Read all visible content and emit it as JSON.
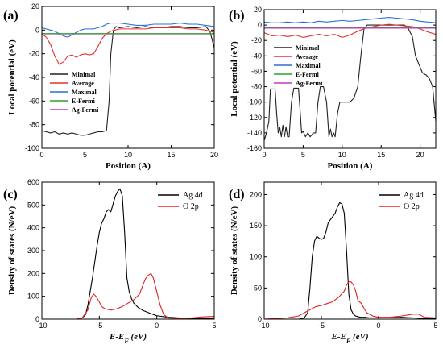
{
  "chart_data": [
    {
      "panel": "(a)",
      "type": "line",
      "xlabel": "Position (A)",
      "ylabel": "Local potential (eV)",
      "xlim": [
        0,
        20
      ],
      "ylim": [
        -100,
        20
      ],
      "xticks": [
        0,
        5,
        10,
        15,
        20
      ],
      "yticks": [
        -100,
        -80,
        -60,
        -40,
        -20,
        0,
        20
      ],
      "legend_position": "center-left",
      "series": [
        {
          "name": "Minimal",
          "color": "#222222",
          "x": [
            0,
            0.5,
            1,
            1.5,
            2,
            2.5,
            3,
            3.5,
            4,
            4.5,
            5,
            5.5,
            6,
            6.5,
            7,
            7.5,
            7.8,
            8.0,
            8.3,
            8.6,
            9,
            10,
            11,
            12,
            13,
            14,
            15,
            16,
            17,
            18,
            19,
            19.5,
            20
          ],
          "y": [
            -85,
            -86,
            -87,
            -86,
            -88,
            -87,
            -88,
            -87,
            -88,
            -89,
            -89,
            -88,
            -87,
            -86,
            -86,
            -85,
            -60,
            -20,
            0,
            3,
            2,
            3,
            2,
            3,
            2,
            2,
            3,
            3,
            2,
            2,
            3,
            -1,
            -15
          ]
        },
        {
          "name": "Average",
          "color": "#e8302a",
          "x": [
            0,
            0.5,
            1,
            1.5,
            2,
            2.5,
            3,
            3.5,
            4,
            4.5,
            5,
            5.5,
            6,
            6.5,
            7,
            7.5,
            8,
            8.5,
            9,
            10,
            11,
            12,
            13,
            14,
            15,
            16,
            17,
            18,
            19,
            20
          ],
          "y": [
            -3,
            -6,
            -12,
            -22,
            -29,
            -27,
            -22,
            -21,
            -23,
            -21,
            -20,
            -21,
            -20,
            -14,
            -7,
            -3,
            -1,
            0,
            1,
            1,
            1,
            1,
            2,
            2,
            2,
            2,
            1,
            1,
            0,
            -2
          ]
        },
        {
          "name": "Maximal",
          "color": "#2b6fd6",
          "x": [
            0,
            0.5,
            1,
            1.5,
            2,
            2.5,
            3,
            3.5,
            4,
            4.5,
            5,
            5.5,
            6,
            6.5,
            7,
            7.5,
            8,
            9,
            10,
            11,
            12,
            13,
            14,
            15,
            16,
            17,
            18,
            19,
            20
          ],
          "y": [
            2,
            1,
            0,
            -1,
            -3,
            -5,
            -6,
            -4,
            -2,
            0,
            1,
            1,
            1,
            2,
            3,
            5,
            6,
            6,
            5,
            4,
            4,
            5,
            5,
            5,
            6,
            5,
            5,
            4,
            3
          ]
        },
        {
          "name": "E-Fermi",
          "color": "#2ca02c",
          "x": [
            0,
            20
          ],
          "y": [
            -3,
            -3
          ]
        },
        {
          "name": "Ag-Fermi",
          "color": "#c03ac0",
          "x": [
            0,
            20
          ],
          "y": [
            -4,
            -4
          ]
        }
      ]
    },
    {
      "panel": "(b)",
      "type": "line",
      "xlabel": "Position (A)",
      "ylabel": "Local potential (eV)",
      "xlim": [
        0,
        22
      ],
      "ylim": [
        -160,
        20
      ],
      "xticks": [
        0,
        5,
        10,
        15,
        20
      ],
      "yticks": [
        -160,
        -140,
        -120,
        -100,
        -80,
        -60,
        -40,
        -20,
        0,
        20
      ],
      "legend_position": "center-left",
      "series": [
        {
          "name": "Minimal",
          "color": "#222222",
          "x": [
            0,
            0.3,
            0.6,
            0.8,
            1.4,
            1.6,
            1.8,
            2.0,
            2.2,
            2.4,
            2.6,
            2.8,
            3.0,
            3.2,
            3.5,
            3.8,
            4.4,
            4.6,
            4.8,
            5.0,
            5.3,
            5.6,
            5.9,
            6.3,
            6.6,
            6.9,
            7.2,
            7.6,
            8.0,
            8.3,
            8.5,
            8.7,
            8.9,
            9.1,
            9.4,
            9.7,
            10.0,
            10.3,
            10.6,
            11.0,
            11.5,
            12.0,
            12.4,
            12.8,
            13.2,
            14,
            15,
            16,
            17,
            18,
            18.5,
            19,
            19.4,
            19.8,
            20.3,
            20.8,
            21.2,
            21.6,
            22
          ],
          "y": [
            -150,
            -140,
            -125,
            -83,
            -83,
            -115,
            -140,
            -133,
            -145,
            -130,
            -145,
            -132,
            -145,
            -145,
            -100,
            -82,
            -82,
            -110,
            -140,
            -138,
            -145,
            -140,
            -145,
            -140,
            -140,
            -100,
            -80,
            -80,
            -100,
            -145,
            -135,
            -145,
            -140,
            -145,
            -115,
            -100,
            -100,
            -100,
            -100,
            -100,
            -95,
            -80,
            -40,
            -5,
            0,
            0,
            0,
            0,
            0,
            0,
            -5,
            -15,
            -40,
            -50,
            -62,
            -65,
            -70,
            -80,
            -125
          ]
        },
        {
          "name": "Average",
          "color": "#e8302a",
          "x": [
            0,
            1,
            2,
            3,
            4,
            5,
            6,
            7,
            8,
            9,
            10,
            11,
            12,
            13,
            14,
            15,
            16,
            17,
            18,
            19,
            20,
            21,
            22
          ],
          "y": [
            -10,
            -14,
            -13,
            -15,
            -13,
            -16,
            -14,
            -12,
            -14,
            -12,
            -16,
            -13,
            -8,
            -4,
            -2,
            0,
            1,
            0,
            -1,
            -2,
            -5,
            -9,
            -12
          ]
        },
        {
          "name": "Maximal",
          "color": "#2b6fd6",
          "x": [
            0,
            1,
            2,
            3,
            4,
            5,
            6,
            7,
            8,
            9,
            10,
            11,
            12,
            13,
            14,
            15,
            16,
            17,
            18,
            19,
            20,
            21,
            22
          ],
          "y": [
            4,
            3,
            3,
            4,
            3,
            4,
            3,
            5,
            4,
            5,
            6,
            5,
            6,
            7,
            8,
            9,
            10,
            9,
            8,
            7,
            5,
            4,
            3
          ]
        },
        {
          "name": "E-Fermi",
          "color": "#2ca02c",
          "x": [
            0,
            22
          ],
          "y": [
            -3,
            -3
          ]
        },
        {
          "name": "Ag-Fermi",
          "color": "#c03ac0",
          "x": [
            0,
            22
          ],
          "y": [
            -4,
            -4
          ]
        }
      ]
    },
    {
      "panel": "(c)",
      "type": "line",
      "xlabel": "E-E_F (eV)",
      "ylabel": "Density of states (N/eV)",
      "xlim": [
        -10,
        5
      ],
      "ylim": [
        0,
        600
      ],
      "xticks": [
        -10,
        -5,
        0,
        5
      ],
      "yticks": [
        0,
        100,
        200,
        300,
        400,
        500,
        600
      ],
      "legend_position": "top-right",
      "series": [
        {
          "name": "Ag 4d",
          "color": "#000000",
          "x": [
            -10,
            -7,
            -6.5,
            -6.2,
            -6.0,
            -5.8,
            -5.6,
            -5.4,
            -5.2,
            -5.0,
            -4.8,
            -4.6,
            -4.4,
            -4.2,
            -4.0,
            -3.8,
            -3.6,
            -3.4,
            -3.2,
            -3.0,
            -2.8,
            -2.6,
            -2.4,
            -2.2,
            -2.0,
            -1.6,
            -1.2,
            -0.8,
            -0.4,
            0,
            1,
            2,
            3,
            5
          ],
          "y": [
            0,
            0,
            5,
            20,
            60,
            120,
            180,
            250,
            320,
            380,
            420,
            440,
            470,
            480,
            470,
            505,
            540,
            560,
            570,
            540,
            380,
            180,
            120,
            90,
            70,
            50,
            38,
            30,
            22,
            15,
            8,
            5,
            3,
            2
          ]
        },
        {
          "name": "O 2p",
          "color": "#e02020",
          "x": [
            -10,
            -7,
            -6.5,
            -6.0,
            -5.7,
            -5.5,
            -5.3,
            -5.0,
            -4.8,
            -4.5,
            -4.0,
            -3.5,
            -3.0,
            -2.5,
            -2.0,
            -1.5,
            -1.2,
            -1.0,
            -0.8,
            -0.5,
            -0.3,
            0.0,
            0.3,
            0.6,
            1.0,
            2,
            3,
            4,
            5
          ],
          "y": [
            0,
            0,
            5,
            40,
            95,
            110,
            100,
            75,
            55,
            45,
            40,
            45,
            55,
            70,
            85,
            110,
            150,
            175,
            190,
            200,
            180,
            120,
            60,
            20,
            5,
            2,
            5,
            10,
            12
          ]
        }
      ]
    },
    {
      "panel": "(d)",
      "type": "line",
      "xlabel": "E-E_F (eV)",
      "ylabel": "Density of states (N/eV)",
      "xlim": [
        -10,
        5
      ],
      "ylim": [
        0,
        220
      ],
      "xticks": [
        -10,
        -5,
        0,
        5
      ],
      "yticks": [
        0,
        50,
        100,
        150,
        200
      ],
      "legend_position": "top-right",
      "series": [
        {
          "name": "Ag 4d",
          "color": "#000000",
          "x": [
            -10,
            -7,
            -6.5,
            -6.2,
            -6.0,
            -5.8,
            -5.6,
            -5.4,
            -5.2,
            -5.0,
            -4.8,
            -4.6,
            -4.4,
            -4.2,
            -4.0,
            -3.8,
            -3.6,
            -3.4,
            -3.2,
            -3.0,
            -2.8,
            -2.6,
            -2.4,
            -2.2,
            -2.0,
            -1.6,
            -1.2,
            -0.8,
            -0.4,
            0,
            1,
            2,
            3,
            4,
            5
          ],
          "y": [
            0,
            0,
            2,
            10,
            50,
            100,
            125,
            133,
            130,
            128,
            130,
            140,
            155,
            160,
            165,
            170,
            180,
            187,
            185,
            170,
            110,
            40,
            15,
            8,
            5,
            3,
            3,
            2,
            2,
            2,
            2,
            3,
            2,
            1,
            1
          ]
        },
        {
          "name": "O 2p",
          "color": "#e02020",
          "x": [
            -10,
            -8,
            -7,
            -6.5,
            -6.0,
            -5.5,
            -5.0,
            -4.5,
            -4.0,
            -3.5,
            -3.0,
            -2.8,
            -2.6,
            -2.4,
            -2.2,
            -2.0,
            -1.8,
            -1.5,
            -1.2,
            -1.0,
            -0.5,
            0,
            0.5,
            1,
            2,
            3,
            3.5,
            4,
            5
          ],
          "y": [
            0,
            2,
            5,
            10,
            15,
            20,
            22,
            25,
            28,
            35,
            45,
            55,
            60,
            60,
            55,
            45,
            30,
            25,
            15,
            10,
            5,
            3,
            3,
            3,
            5,
            8,
            8,
            3,
            2
          ]
        }
      ]
    }
  ]
}
